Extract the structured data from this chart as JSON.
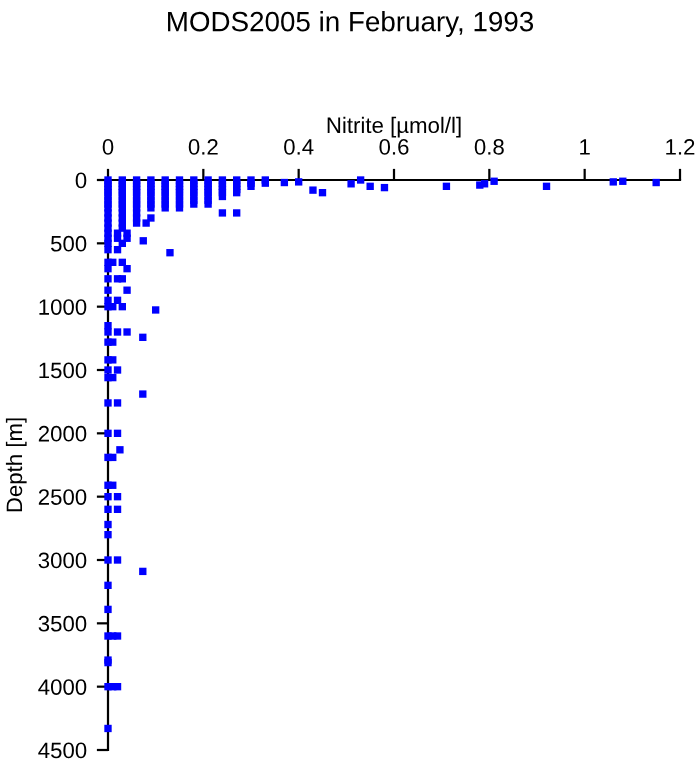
{
  "chart_data": {
    "type": "scatter",
    "title": "MODS2005 in February, 1993",
    "xlabel": "Nitrite [µmol/l]",
    "ylabel": "Depth [m]",
    "xlim": [
      0,
      1.2
    ],
    "xticks": [
      0,
      0.2,
      0.4,
      0.6,
      0.8,
      1,
      1.2
    ],
    "ylim": [
      4500,
      0
    ],
    "yticks": [
      0,
      500,
      1000,
      1500,
      2000,
      2500,
      3000,
      3500,
      4000,
      4500
    ],
    "grid": false,
    "legend": false,
    "marker": "square",
    "series": [
      {
        "color": "#0000ff",
        "x": [
          0,
          0.03,
          0.06,
          0.09,
          0.12,
          0.15,
          0.18,
          0.21,
          0.24,
          0.27,
          0.3,
          0.33,
          0,
          0.03,
          0.06,
          0.09,
          0.12,
          0.15,
          0.18,
          0.21,
          0.24,
          0.27,
          0.3,
          0.33,
          0,
          0.03,
          0.06,
          0.09,
          0.12,
          0.15,
          0.18,
          0.21,
          0.24,
          0.27,
          0.3,
          0,
          0.03,
          0.06,
          0.09,
          0.12,
          0.15,
          0.18,
          0.21,
          0.24,
          0.27,
          0,
          0.03,
          0.06,
          0.09,
          0.12,
          0.15,
          0.18,
          0.21,
          0.24,
          0.27,
          0,
          0.03,
          0.06,
          0.09,
          0.12,
          0.15,
          0.18,
          0.21,
          0.24,
          0,
          0.03,
          0.06,
          0.09,
          0.12,
          0.15,
          0.18,
          0.21,
          0,
          0.03,
          0.06,
          0.09,
          0.12,
          0.15,
          0.18,
          0.21,
          0,
          0.03,
          0.06,
          0.09,
          0.12,
          0.15,
          0,
          0.03,
          0.06,
          0.24,
          0.27,
          0,
          0.03,
          0.06,
          0.09,
          0,
          0.03,
          0.06,
          0.08,
          0,
          0.03,
          0,
          0.02,
          0.04,
          0.074,
          0,
          0.02,
          0.04,
          0,
          0.03,
          0.13,
          0,
          0.02,
          0,
          0.01,
          0.03,
          0,
          0.04,
          0,
          0.02,
          0.03,
          0,
          0.04,
          0,
          0.02,
          0,
          0.01,
          0.03,
          0.1,
          0,
          0,
          0.02,
          0.04,
          0.073,
          0,
          0.01,
          0,
          0.01,
          0,
          0.02,
          0,
          0.01,
          0.073,
          0,
          0.02,
          0,
          0.02,
          0.025,
          0,
          0.01,
          0,
          0.01,
          0,
          0.02,
          0,
          0.02,
          0,
          0,
          0,
          0.02,
          0.073,
          0,
          0,
          0,
          0.01,
          0.02,
          0,
          0,
          0,
          0.01,
          0.02,
          0,
          0.37,
          0.4,
          0.43,
          0.45,
          0.51,
          0.53,
          0.55,
          0.58,
          0.71,
          0.78,
          0.79,
          0.81,
          0.92,
          1.06,
          1.08,
          1.15
        ],
        "values": [
          0,
          0,
          0,
          0,
          0,
          0,
          0,
          0,
          0,
          0,
          0,
          0,
          25,
          25,
          25,
          25,
          25,
          25,
          25,
          25,
          25,
          25,
          25,
          25,
          50,
          50,
          50,
          50,
          50,
          50,
          50,
          50,
          50,
          50,
          50,
          75,
          75,
          75,
          75,
          75,
          75,
          75,
          75,
          75,
          75,
          100,
          100,
          100,
          100,
          100,
          100,
          100,
          100,
          100,
          100,
          130,
          130,
          130,
          130,
          130,
          130,
          130,
          130,
          130,
          160,
          160,
          160,
          160,
          160,
          160,
          160,
          160,
          190,
          190,
          190,
          190,
          190,
          190,
          190,
          190,
          220,
          220,
          220,
          220,
          220,
          220,
          260,
          260,
          260,
          260,
          260,
          300,
          300,
          300,
          300,
          340,
          340,
          340,
          340,
          380,
          380,
          420,
          420,
          420,
          480,
          460,
          460,
          460,
          500,
          500,
          574,
          550,
          550,
          650,
          650,
          650,
          700,
          700,
          780,
          780,
          780,
          870,
          870,
          950,
          950,
          1000,
          1000,
          1000,
          1026,
          1150,
          1200,
          1200,
          1200,
          1242,
          1280,
          1280,
          1420,
          1420,
          1500,
          1500,
          1560,
          1560,
          1690,
          1760,
          1760,
          2000,
          2000,
          2130,
          2190,
          2190,
          2410,
          2410,
          2500,
          2500,
          2600,
          2600,
          2720,
          2800,
          3000,
          3000,
          3090,
          3200,
          3390,
          3600,
          3600,
          3600,
          3790,
          3810,
          4000,
          4000,
          4000,
          4330,
          20,
          15,
          80,
          100,
          30,
          0,
          50,
          60,
          50,
          40,
          30,
          10,
          50,
          15,
          10,
          20
        ]
      }
    ]
  }
}
